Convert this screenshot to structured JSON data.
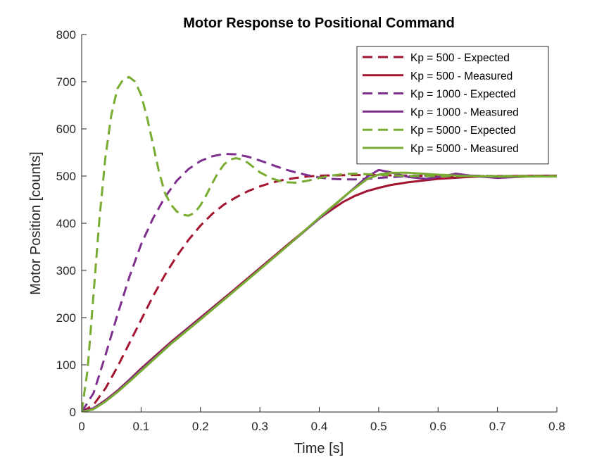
{
  "chart_data": {
    "type": "line",
    "title": "Motor Response to Positional Command",
    "xlabel": "Time [s]",
    "ylabel": "Motor Position [counts]",
    "xlim": [
      0,
      0.8
    ],
    "ylim": [
      0,
      800
    ],
    "xticks": [
      0,
      0.1,
      0.2,
      0.3,
      0.4,
      0.5,
      0.6,
      0.7,
      0.8
    ],
    "xtick_labels": [
      "0",
      "0.1",
      "0.2",
      "0.3",
      "0.4",
      "0.5",
      "0.6",
      "0.7",
      "0.8"
    ],
    "yticks": [
      0,
      100,
      200,
      300,
      400,
      500,
      600,
      700,
      800
    ],
    "ytick_labels": [
      "0",
      "100",
      "200",
      "300",
      "400",
      "500",
      "600",
      "700",
      "800"
    ],
    "grid": false,
    "legend_position": "top-right",
    "series": [
      {
        "name": "Kp = 500 - Expected",
        "color": "#A2142F",
        "style": "dashed",
        "x": [
          0,
          0.02,
          0.04,
          0.06,
          0.08,
          0.1,
          0.12,
          0.14,
          0.16,
          0.18,
          0.2,
          0.22,
          0.24,
          0.26,
          0.28,
          0.3,
          0.32,
          0.34,
          0.36,
          0.38,
          0.4,
          0.45,
          0.5,
          0.55,
          0.6,
          0.7,
          0.8
        ],
        "y": [
          0,
          15,
          50,
          95,
          145,
          195,
          245,
          290,
          330,
          365,
          395,
          420,
          440,
          455,
          468,
          478,
          486,
          492,
          496,
          499,
          501,
          502,
          502,
          501,
          500,
          500,
          500
        ]
      },
      {
        "name": "Kp = 500 - Measured",
        "color": "#A2142F",
        "style": "solid",
        "x": [
          0,
          0.02,
          0.04,
          0.06,
          0.08,
          0.1,
          0.15,
          0.2,
          0.25,
          0.3,
          0.35,
          0.4,
          0.42,
          0.44,
          0.46,
          0.48,
          0.5,
          0.52,
          0.55,
          0.6,
          0.65,
          0.7,
          0.8
        ],
        "y": [
          0,
          8,
          25,
          45,
          68,
          92,
          148,
          200,
          252,
          305,
          358,
          410,
          428,
          445,
          458,
          468,
          475,
          481,
          487,
          494,
          498,
          500,
          501
        ]
      },
      {
        "name": "Kp = 1000 - Expected",
        "color": "#7E2F8E",
        "style": "dashed",
        "x": [
          0,
          0.02,
          0.04,
          0.06,
          0.08,
          0.1,
          0.12,
          0.14,
          0.16,
          0.18,
          0.2,
          0.22,
          0.24,
          0.26,
          0.28,
          0.3,
          0.32,
          0.34,
          0.36,
          0.38,
          0.4,
          0.42,
          0.44,
          0.46,
          0.48,
          0.5,
          0.55,
          0.6,
          0.65,
          0.7,
          0.8
        ],
        "y": [
          0,
          40,
          120,
          205,
          285,
          355,
          410,
          455,
          490,
          515,
          532,
          542,
          547,
          546,
          541,
          533,
          524,
          515,
          508,
          502,
          497,
          494,
          493,
          493,
          494,
          496,
          500,
          502,
          501,
          500,
          500
        ]
      },
      {
        "name": "Kp = 1000 - Measured",
        "color": "#7E2F8E",
        "style": "solid",
        "x": [
          0,
          0.02,
          0.04,
          0.06,
          0.08,
          0.1,
          0.15,
          0.2,
          0.25,
          0.3,
          0.35,
          0.4,
          0.45,
          0.48,
          0.5,
          0.52,
          0.55,
          0.58,
          0.6,
          0.63,
          0.66,
          0.7,
          0.75,
          0.8
        ],
        "y": [
          0,
          8,
          24,
          44,
          67,
          90,
          146,
          198,
          250,
          303,
          356,
          410,
          465,
          498,
          513,
          508,
          498,
          494,
          498,
          505,
          500,
          496,
          499,
          500
        ]
      },
      {
        "name": "Kp = 5000 - Expected",
        "color": "#77AC30",
        "style": "dashed",
        "x": [
          0,
          0.01,
          0.02,
          0.03,
          0.04,
          0.05,
          0.06,
          0.07,
          0.08,
          0.09,
          0.1,
          0.11,
          0.12,
          0.13,
          0.14,
          0.15,
          0.16,
          0.17,
          0.18,
          0.19,
          0.2,
          0.21,
          0.22,
          0.23,
          0.24,
          0.25,
          0.26,
          0.27,
          0.28,
          0.29,
          0.3,
          0.32,
          0.34,
          0.36,
          0.38,
          0.4,
          0.42,
          0.44,
          0.46,
          0.5,
          0.55,
          0.6,
          0.7,
          0.8
        ],
        "y": [
          0,
          90,
          250,
          410,
          540,
          630,
          685,
          705,
          710,
          700,
          672,
          625,
          568,
          510,
          465,
          440,
          425,
          418,
          416,
          422,
          438,
          460,
          485,
          508,
          525,
          535,
          538,
          535,
          528,
          518,
          508,
          495,
          487,
          486,
          490,
          496,
          501,
          504,
          505,
          503,
          500,
          500,
          500,
          500
        ]
      },
      {
        "name": "Kp = 5000 - Measured",
        "color": "#77AC30",
        "style": "solid",
        "x": [
          0,
          0.02,
          0.04,
          0.06,
          0.08,
          0.1,
          0.15,
          0.2,
          0.25,
          0.3,
          0.35,
          0.4,
          0.45,
          0.48,
          0.5,
          0.52,
          0.55,
          0.6,
          0.65,
          0.7,
          0.8
        ],
        "y": [
          0,
          6,
          22,
          42,
          64,
          87,
          144,
          196,
          249,
          302,
          356,
          412,
          465,
          493,
          503,
          507,
          507,
          503,
          500,
          499,
          499
        ]
      }
    ]
  }
}
